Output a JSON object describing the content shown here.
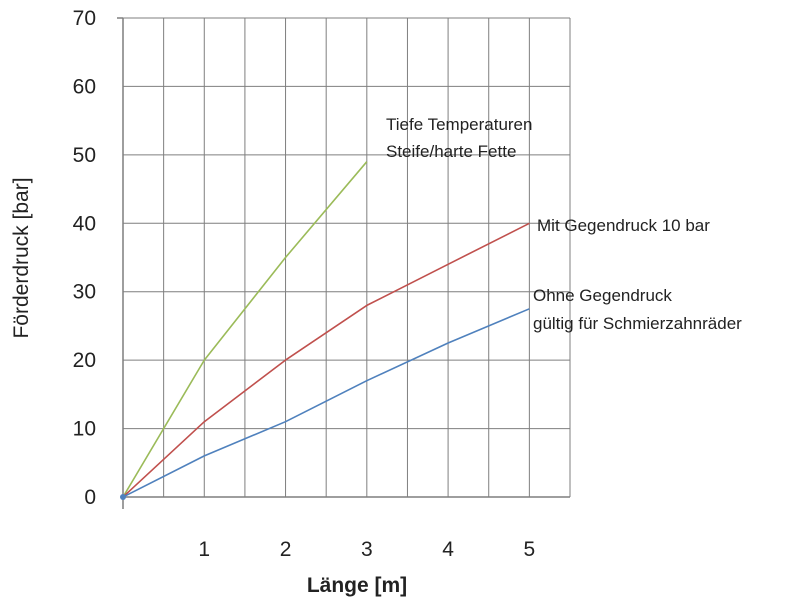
{
  "chart_data": {
    "type": "line",
    "xlabel": "Länge [m]",
    "ylabel": "Förderdruck [bar]",
    "xlim": [
      0,
      5.5
    ],
    "ylim": [
      0,
      70
    ],
    "xticks": [
      1,
      2,
      3,
      4,
      5
    ],
    "xtick_labels": [
      "1",
      "2",
      "3",
      "4",
      "5"
    ],
    "yticks": [
      0,
      10,
      20,
      30,
      40,
      50,
      60,
      70
    ],
    "ytick_labels": [
      "0",
      "10",
      "20",
      "30",
      "40",
      "50",
      "60",
      "70"
    ],
    "grid": true,
    "series": [
      {
        "color": "#9bbb59",
        "points": [
          [
            0,
            0
          ],
          [
            1,
            20
          ],
          [
            2,
            35
          ],
          [
            3,
            49
          ]
        ]
      },
      {
        "color": "#c0504d",
        "points": [
          [
            0,
            0
          ],
          [
            1,
            11
          ],
          [
            2,
            20
          ],
          [
            3,
            28
          ],
          [
            4,
            34
          ],
          [
            5,
            40
          ]
        ]
      },
      {
        "color": "#4f81bd",
        "points": [
          [
            0,
            0
          ],
          [
            1,
            6
          ],
          [
            2,
            11
          ],
          [
            3,
            17
          ],
          [
            4,
            22.5
          ],
          [
            5,
            27.5
          ]
        ]
      }
    ],
    "annotations": [
      {
        "lines": [
          "Tiefe Temperaturen",
          "Steife/harte Fette"
        ]
      },
      {
        "lines": [
          "Mit Gegendruck 10 bar"
        ]
      },
      {
        "lines": [
          "Ohne Gegendruck",
          "gültig für Schmierzahnräder"
        ]
      }
    ]
  }
}
